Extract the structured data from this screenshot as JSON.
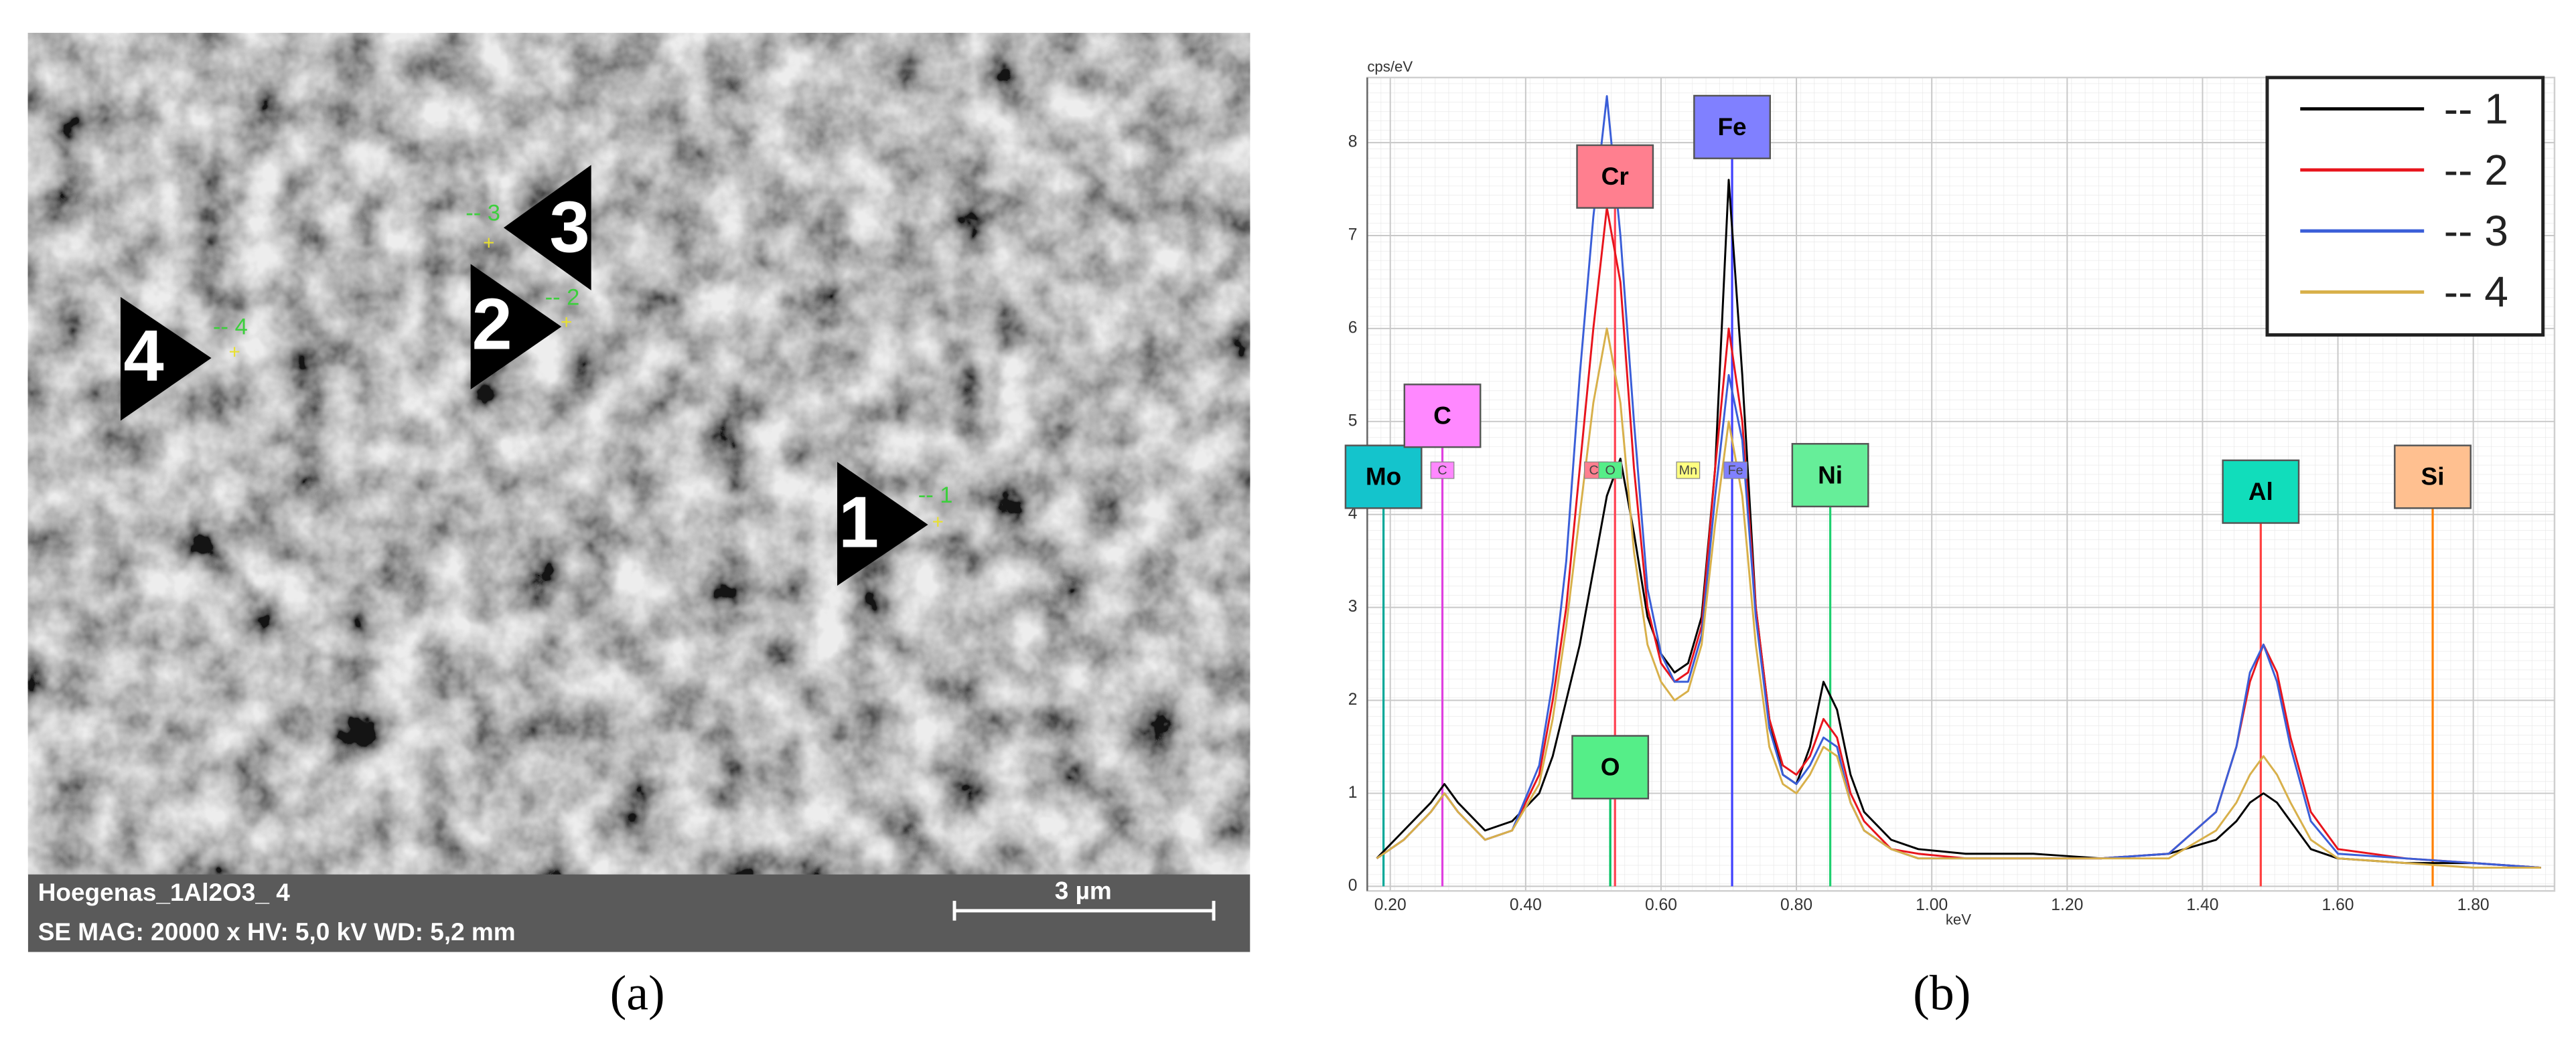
{
  "panel_a": {
    "caption": "(a)",
    "sample": "Hoegenas_1Al2O3_ 4",
    "info": "SE  MAG: 20000 x  HV: 5,0 kV  WD: 5,2 mm",
    "scale_bar": "3 µm",
    "markers": [
      {
        "label": "1",
        "tag": "-- 1"
      },
      {
        "label": "2",
        "tag": "-- 2"
      },
      {
        "label": "3",
        "tag": "-- 3"
      },
      {
        "label": "4",
        "tag": "-- 4"
      }
    ]
  },
  "chart_data": {
    "type": "line",
    "caption": "(b)",
    "y_label": "cps/eV",
    "x_label": "keV",
    "x": [
      0.18,
      0.22,
      0.26,
      0.28,
      0.3,
      0.34,
      0.38,
      0.42,
      0.44,
      0.46,
      0.48,
      0.5,
      0.52,
      0.54,
      0.56,
      0.58,
      0.6,
      0.62,
      0.64,
      0.66,
      0.68,
      0.7,
      0.72,
      0.74,
      0.76,
      0.78,
      0.8,
      0.82,
      0.84,
      0.86,
      0.88,
      0.9,
      0.94,
      0.98,
      1.05,
      1.15,
      1.25,
      1.35,
      1.42,
      1.45,
      1.47,
      1.49,
      1.51,
      1.53,
      1.56,
      1.6,
      1.7,
      1.8,
      1.9
    ],
    "series": [
      {
        "name": "-- 1",
        "color": "#000000",
        "values": [
          0.3,
          0.6,
          0.9,
          1.1,
          0.9,
          0.6,
          0.7,
          1.0,
          1.4,
          2.0,
          2.6,
          3.4,
          4.2,
          4.6,
          3.8,
          2.9,
          2.5,
          2.3,
          2.4,
          2.9,
          4.5,
          7.6,
          5.5,
          3.0,
          1.8,
          1.2,
          1.1,
          1.5,
          2.2,
          1.9,
          1.2,
          0.8,
          0.5,
          0.4,
          0.35,
          0.35,
          0.3,
          0.35,
          0.5,
          0.7,
          0.9,
          1.0,
          0.9,
          0.7,
          0.4,
          0.3,
          0.25,
          0.25,
          0.2
        ]
      },
      {
        "name": "-- 2",
        "color": "#e8141c",
        "values": [
          0.3,
          0.5,
          0.8,
          1.0,
          0.8,
          0.5,
          0.6,
          1.2,
          2.0,
          3.0,
          4.5,
          6.0,
          7.3,
          6.5,
          4.5,
          3.0,
          2.4,
          2.2,
          2.3,
          2.8,
          4.5,
          6.0,
          5.0,
          3.0,
          1.8,
          1.3,
          1.2,
          1.4,
          1.8,
          1.6,
          1.0,
          0.7,
          0.4,
          0.35,
          0.3,
          0.3,
          0.3,
          0.35,
          0.8,
          1.5,
          2.2,
          2.6,
          2.3,
          1.6,
          0.8,
          0.4,
          0.3,
          0.25,
          0.2
        ]
      },
      {
        "name": "-- 3",
        "color": "#3a5ed8",
        "values": [
          0.3,
          0.5,
          0.8,
          1.0,
          0.8,
          0.5,
          0.6,
          1.3,
          2.2,
          3.5,
          5.5,
          7.2,
          8.5,
          7.0,
          5.0,
          3.2,
          2.5,
          2.2,
          2.2,
          2.7,
          4.2,
          5.5,
          4.8,
          2.9,
          1.7,
          1.2,
          1.1,
          1.3,
          1.6,
          1.5,
          0.9,
          0.6,
          0.4,
          0.3,
          0.3,
          0.3,
          0.3,
          0.35,
          0.8,
          1.5,
          2.3,
          2.6,
          2.2,
          1.5,
          0.7,
          0.35,
          0.3,
          0.25,
          0.2
        ]
      },
      {
        "name": "-- 4",
        "color": "#d8b04a",
        "values": [
          0.3,
          0.5,
          0.8,
          1.0,
          0.8,
          0.5,
          0.6,
          1.1,
          1.8,
          2.8,
          4.0,
          5.2,
          6.0,
          5.2,
          3.6,
          2.6,
          2.2,
          2.0,
          2.1,
          2.6,
          3.9,
          5.0,
          4.2,
          2.6,
          1.5,
          1.1,
          1.0,
          1.2,
          1.5,
          1.4,
          0.9,
          0.6,
          0.4,
          0.3,
          0.3,
          0.3,
          0.3,
          0.3,
          0.6,
          0.9,
          1.2,
          1.4,
          1.2,
          0.9,
          0.5,
          0.3,
          0.25,
          0.2,
          0.2
        ]
      }
    ],
    "xlim": [
      0.166,
      1.92
    ],
    "ylim": [
      -0.05,
      8.7
    ],
    "xticks": [
      {
        "value": 0.2,
        "label": "0.20"
      },
      {
        "value": 0.4,
        "label": "0.40"
      },
      {
        "value": 0.6,
        "label": "0.60"
      },
      {
        "value": 0.8,
        "label": "0.80"
      },
      {
        "value": 1.0,
        "label": "1.00"
      },
      {
        "value": 1.2,
        "label": "1.20"
      },
      {
        "value": 1.4,
        "label": "1.40"
      },
      {
        "value": 1.6,
        "label": "1.60"
      },
      {
        "value": 1.8,
        "label": "1.80"
      }
    ],
    "yticks": [
      0,
      1,
      2,
      3,
      4,
      5,
      6,
      7,
      8
    ],
    "grid": true,
    "legend": "upper right",
    "elements": [
      {
        "label": "Mo",
        "x": 0.19,
        "color": "#14c4cc",
        "line_color": "#00a898"
      },
      {
        "label": "C",
        "x": 0.277,
        "color": "#ff88ff",
        "line_color": "#e040e0"
      },
      {
        "label": "Cr",
        "x": 0.532,
        "color": "#ff7f8f",
        "line_color": "#ff4050"
      },
      {
        "label": "O",
        "x": 0.525,
        "color": "#55ee88",
        "line_color": "#00c060"
      },
      {
        "label": "Fe",
        "x": 0.705,
        "color": "#8080ff",
        "line_color": "#4040ff"
      },
      {
        "label": "Ni",
        "x": 0.85,
        "color": "#66ee99",
        "line_color": "#20d070"
      },
      {
        "label": "Al",
        "x": 1.486,
        "color": "#11ddbb",
        "line_color": "#ff4040"
      },
      {
        "label": "Si",
        "x": 1.74,
        "color": "#ffc090",
        "line_color": "#ff8000"
      }
    ],
    "line_tags": [
      {
        "label": "C",
        "x": 0.277,
        "color": "#ff88ff"
      },
      {
        "label": "Cr",
        "x": 0.504,
        "color": "#ff7f8f"
      },
      {
        "label": "O",
        "x": 0.525,
        "color": "#55ee88"
      },
      {
        "label": "Mn",
        "x": 0.64,
        "color": "#ffff80"
      },
      {
        "label": "Fe",
        "x": 0.71,
        "color": "#8080ff"
      }
    ]
  }
}
